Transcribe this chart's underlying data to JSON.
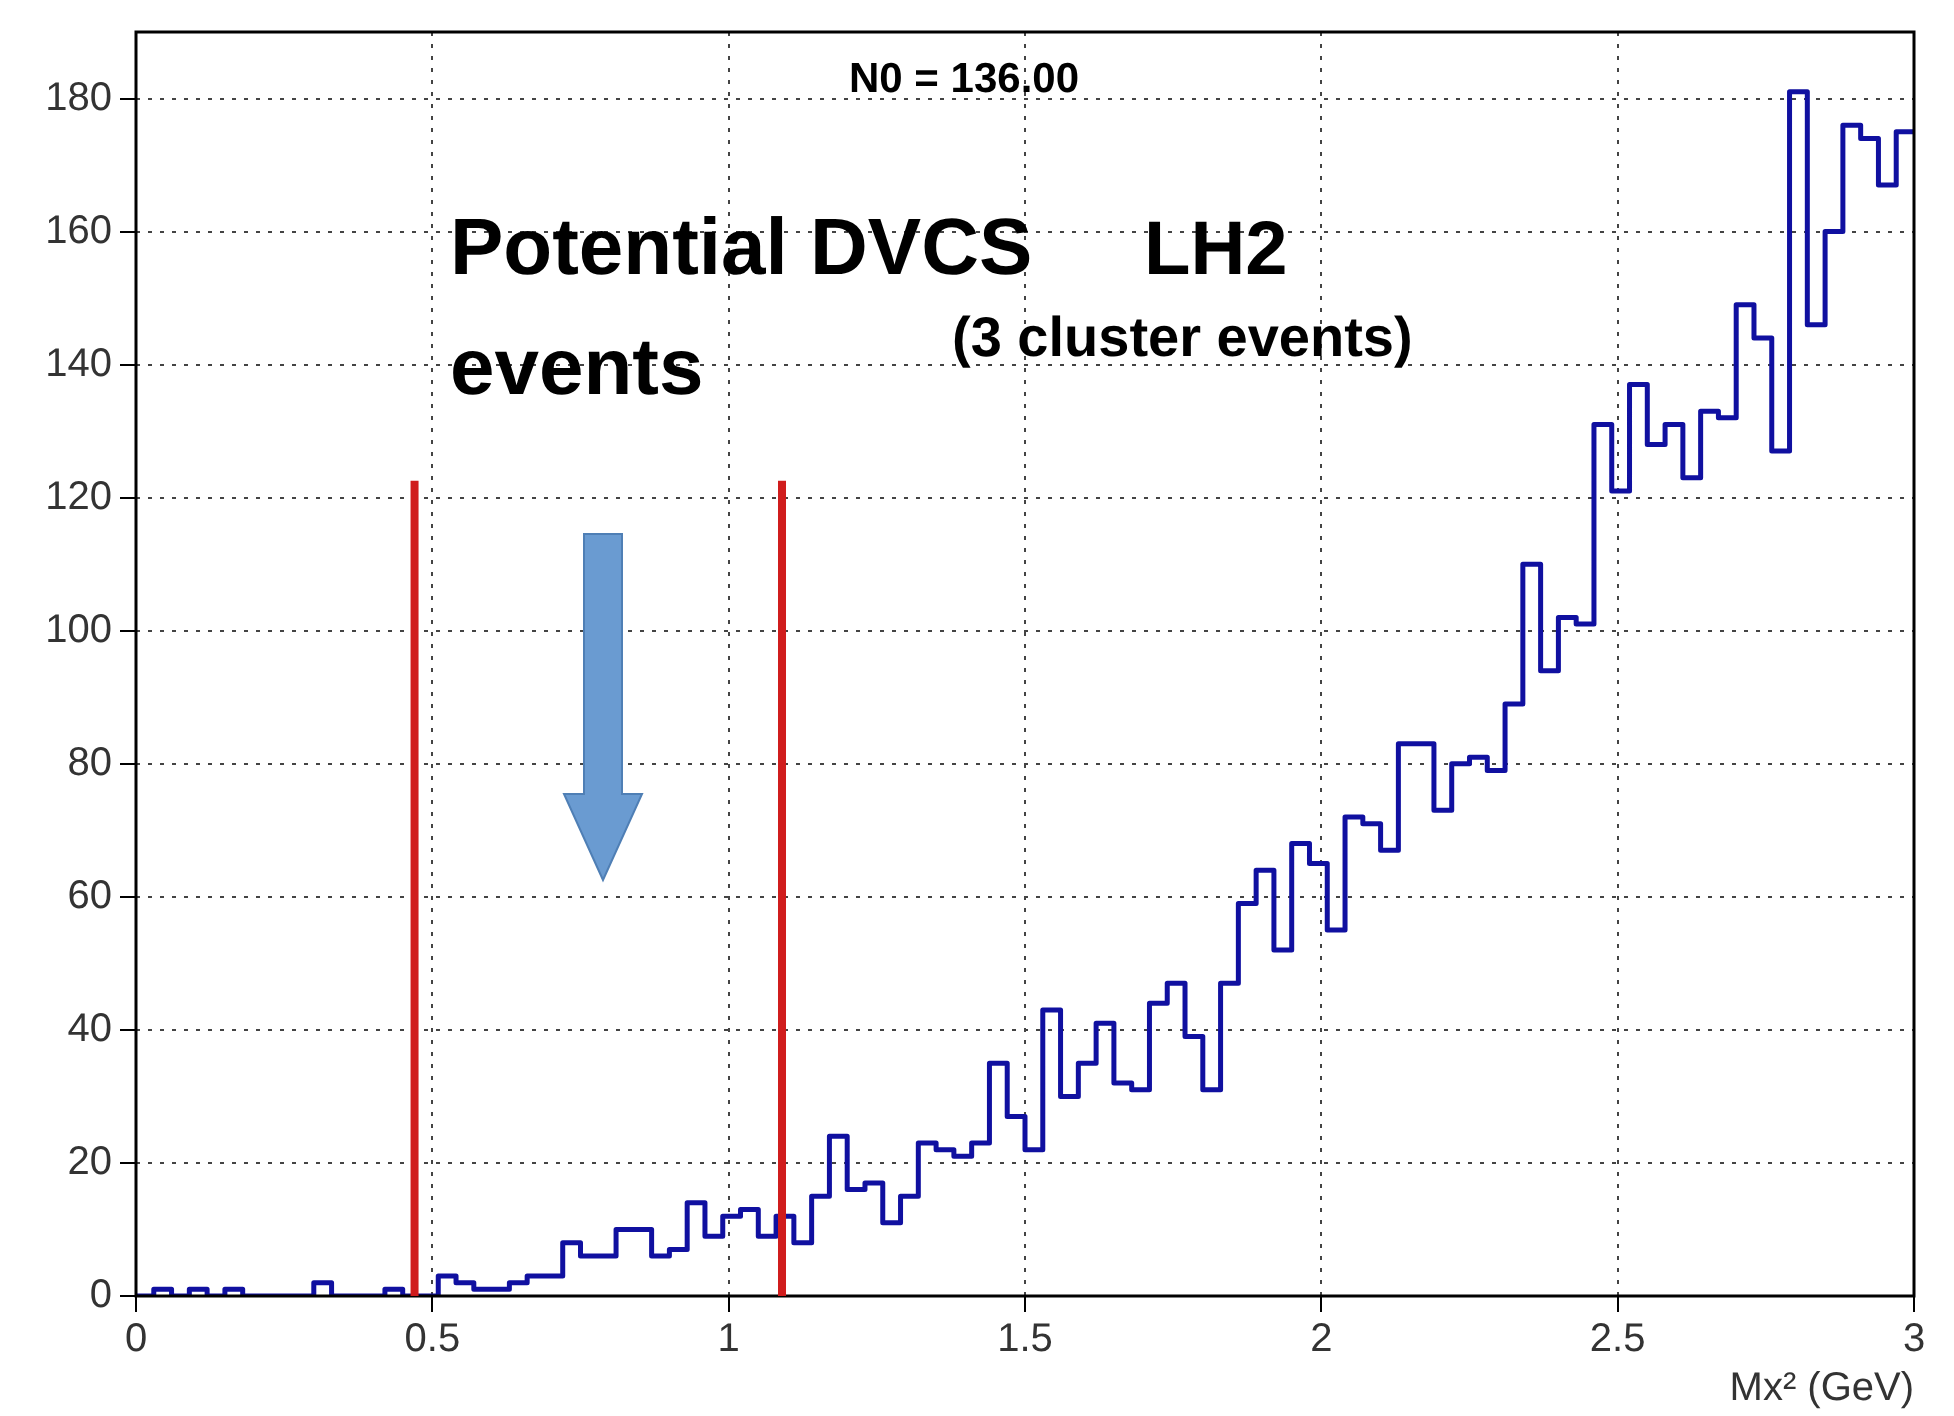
{
  "chart_data": {
    "type": "histogram",
    "title": "N0 = 136.00",
    "xlabel": "Mx² (GeV)",
    "annotations": [
      "Potential DVCS events",
      "LH2",
      "(3 cluster events)"
    ],
    "bins": [
      0,
      0.03,
      0.06,
      0.09,
      0.12,
      0.15,
      0.18,
      0.21,
      0.24,
      0.27,
      0.3,
      0.33,
      0.36,
      0.39,
      0.42,
      0.45,
      0.48,
      0.51,
      0.54,
      0.57,
      0.6,
      0.63,
      0.66,
      0.69,
      0.72,
      0.75,
      0.78,
      0.81,
      0.84,
      0.87,
      0.9,
      0.93,
      0.96,
      0.99,
      1.02,
      1.05,
      1.08,
      1.11,
      1.14,
      1.17,
      1.2,
      1.23,
      1.26,
      1.29,
      1.32,
      1.35,
      1.38,
      1.41,
      1.44,
      1.47,
      1.5,
      1.53,
      1.56,
      1.59,
      1.62,
      1.65,
      1.68,
      1.71,
      1.74,
      1.77,
      1.8,
      1.83,
      1.86,
      1.89,
      1.92,
      1.95,
      1.98,
      2.01,
      2.04,
      2.07,
      2.1,
      2.13,
      2.16,
      2.19,
      2.22,
      2.25,
      2.28,
      2.31,
      2.34,
      2.37,
      2.4,
      2.43,
      2.46,
      2.49,
      2.52,
      2.55,
      2.58,
      2.61,
      2.64,
      2.67,
      2.7,
      2.73,
      2.76,
      2.79,
      2.82,
      2.85,
      2.88,
      2.91,
      2.94,
      2.97,
      3
    ],
    "values": [
      0,
      1,
      0,
      1,
      0,
      1,
      0,
      0,
      0,
      0,
      2,
      0,
      0,
      0,
      1,
      0,
      0,
      3,
      2,
      1,
      1,
      2,
      3,
      3,
      8,
      6,
      6,
      10,
      10,
      6,
      7,
      14,
      9,
      12,
      13,
      9,
      12,
      8,
      15,
      24,
      16,
      17,
      11,
      15,
      23,
      22,
      21,
      23,
      35,
      27,
      22,
      43,
      30,
      35,
      41,
      32,
      31,
      44,
      47,
      39,
      31,
      47,
      59,
      64,
      52,
      68,
      65,
      55,
      72,
      71,
      67,
      83,
      83,
      73,
      80,
      81,
      79,
      89,
      110,
      94,
      102,
      101,
      131,
      121,
      137,
      128,
      131,
      123,
      133,
      132,
      149,
      144,
      127,
      181,
      146,
      160,
      176,
      174,
      167,
      175
    ],
    "color": "#1010a0",
    "xlim": [
      0,
      3
    ],
    "xticks": [
      0,
      0.5,
      1,
      1.5,
      2,
      2.5,
      3
    ],
    "ylim": [
      0,
      190
    ],
    "yticks": [
      0,
      20,
      40,
      60,
      80,
      100,
      120,
      140,
      160,
      180
    ],
    "grid": true,
    "legend": false,
    "ref_lines": [
      {
        "axis": "x",
        "value": 0.47,
        "color": "#d01c1c"
      },
      {
        "axis": "x",
        "value": 1.09,
        "color": "#d01c1c"
      }
    ]
  }
}
